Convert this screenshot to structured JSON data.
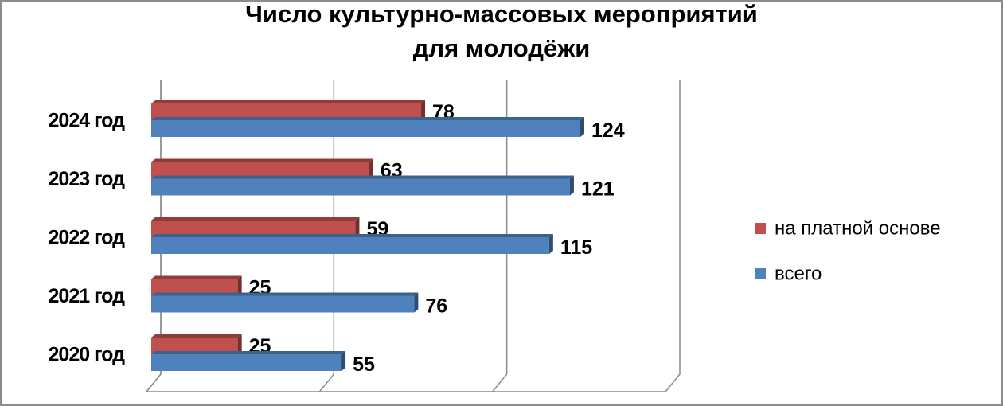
{
  "chart_data": {
    "type": "hbar3d",
    "title": [
      "Число культурно-массовых мероприятий",
      "для молодёжи"
    ],
    "categories": [
      "2020 год",
      "2021 год",
      "2022 год",
      "2023 год",
      "2024 год"
    ],
    "series": [
      {
        "name": "на платной основе",
        "color": "#c0504d",
        "values": [
          25,
          25,
          59,
          63,
          78
        ]
      },
      {
        "name": "всего",
        "color": "#4f81bd",
        "values": [
          55,
          76,
          115,
          121,
          124
        ]
      }
    ],
    "xlim": [
      0,
      150
    ],
    "xticks": [
      0,
      50,
      100,
      150
    ],
    "grid": true,
    "legend": "right"
  }
}
